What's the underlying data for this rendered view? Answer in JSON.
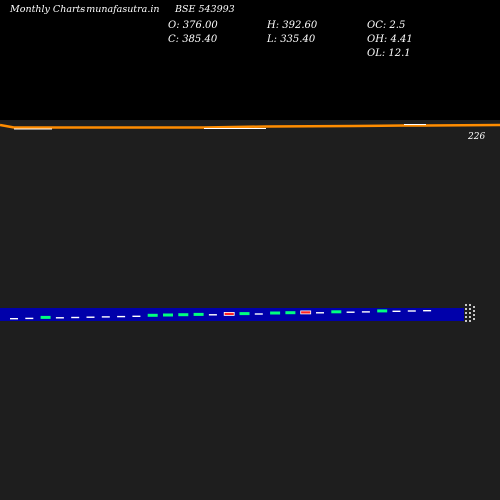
{
  "header": {
    "left_label": "Monthly Charts",
    "site_label": "- munafasutra.in",
    "symbol_label": "BSE 543993"
  },
  "ohlc": {
    "open": "O: 376.00",
    "high": "H: 392.60",
    "close": "C: 385.40",
    "low": "L: 335.40",
    "oc": "OC: 2.5",
    "oh": "OH: 4.41",
    "ol": "OL: 12.1"
  },
  "chart_data": {
    "type": "line",
    "price_label": "226",
    "price_line_color": "#ff8c00",
    "band_color": "#0000aa",
    "up_color": "#00ff7f",
    "down_color": "#ff2222",
    "neutral_color": "#ffffff",
    "volume_markers": [
      "neutral",
      "neutral",
      "up",
      "neutral",
      "neutral",
      "neutral",
      "neutral",
      "neutral",
      "neutral",
      "up",
      "up",
      "up",
      "up",
      "neutral",
      "down",
      "up",
      "neutral",
      "up",
      "up",
      "down",
      "neutral",
      "up",
      "neutral",
      "neutral",
      "up",
      "neutral",
      "neutral",
      "neutral"
    ]
  }
}
